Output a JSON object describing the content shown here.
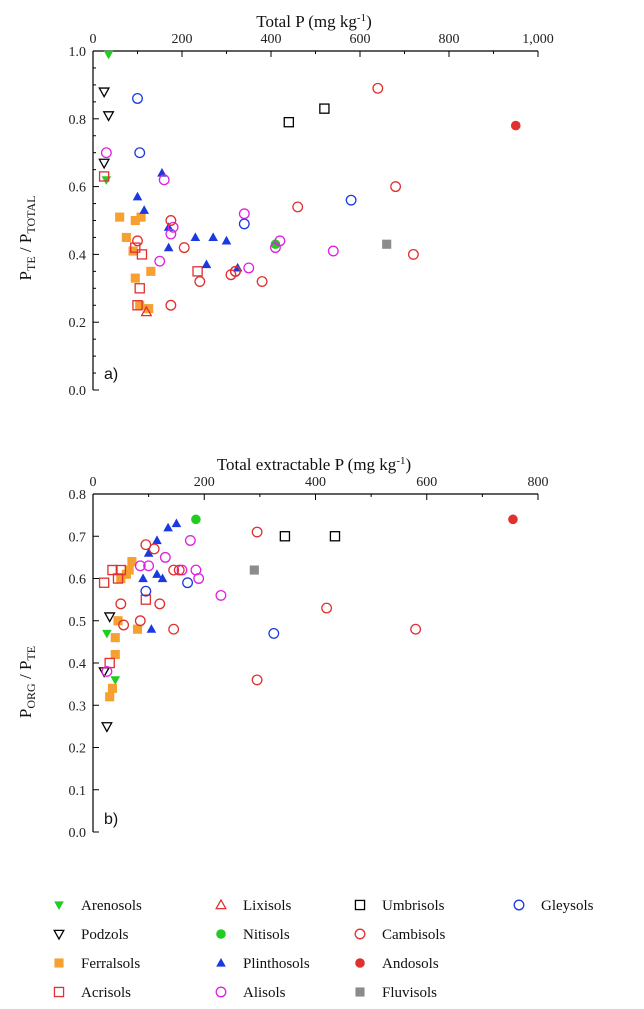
{
  "figure": {
    "legend": [
      {
        "name": "Arenosols",
        "color": "#22cc22",
        "marker": "triangle-down-filled"
      },
      {
        "name": "Podzols",
        "color": "#000000",
        "marker": "triangle-down-open"
      },
      {
        "name": "Ferralsols",
        "color": "#f5a030",
        "marker": "square-filled"
      },
      {
        "name": "Acrisols",
        "color": "#e03030",
        "marker": "square-open"
      },
      {
        "name": "Lixisols",
        "color": "#e03030",
        "marker": "triangle-up-open"
      },
      {
        "name": "Nitisols",
        "color": "#22cc22",
        "marker": "circle-filled"
      },
      {
        "name": "Plinthosols",
        "color": "#1a3ae0",
        "marker": "triangle-up-filled"
      },
      {
        "name": "Alisols",
        "color": "#e020e0",
        "marker": "circle-open"
      },
      {
        "name": "Umbrisols",
        "color": "#000000",
        "marker": "square-open"
      },
      {
        "name": "Cambisols",
        "color": "#e03030",
        "marker": "circle-open"
      },
      {
        "name": "Andosols",
        "color": "#e03030",
        "marker": "circle-filled"
      },
      {
        "name": "Fluvisols",
        "color": "#8c8c8c",
        "marker": "square-filled"
      },
      {
        "name": "Gleysols",
        "color": "#1a3ae0",
        "marker": "circle-open"
      }
    ]
  },
  "chart_data": [
    {
      "panel": "a)",
      "type": "scatter",
      "xlabel": {
        "main": "Total P (mg kg",
        "sup": "-1",
        "tail": ")"
      },
      "ylabel": {
        "p1": "P",
        "sub1": "TE",
        "mid": " / P",
        "sub2": "TOTAL"
      },
      "x_ticks": [
        "0",
        "200",
        "400",
        "600",
        "800",
        "1,000"
      ],
      "y_ticks": [
        "0.0",
        "0.2",
        "0.4",
        "0.6",
        "0.8",
        "1.0"
      ],
      "xlim": [
        0,
        1000
      ],
      "ylim": [
        0,
        1.0
      ],
      "x_axis_position": "top",
      "grid": false,
      "series": [
        {
          "name": "Arenosols",
          "points": [
            [
              35,
              0.99
            ],
            [
              30,
              0.62
            ]
          ]
        },
        {
          "name": "Podzols",
          "points": [
            [
              25,
              0.88
            ],
            [
              35,
              0.81
            ],
            [
              25,
              0.67
            ]
          ]
        },
        {
          "name": "Ferralsols",
          "points": [
            [
              60,
              0.51
            ],
            [
              75,
              0.45
            ],
            [
              90,
              0.41
            ],
            [
              95,
              0.5
            ],
            [
              95,
              0.33
            ],
            [
              108,
              0.51
            ],
            [
              105,
              0.25
            ],
            [
              130,
              0.35
            ],
            [
              125,
              0.24
            ]
          ]
        },
        {
          "name": "Acrisols",
          "points": [
            [
              25,
              0.63
            ],
            [
              95,
              0.42
            ],
            [
              105,
              0.3
            ],
            [
              110,
              0.4
            ],
            [
              100,
              0.25
            ],
            [
              235,
              0.35
            ]
          ]
        },
        {
          "name": "Lixisols",
          "points": [
            [
              120,
              0.23
            ]
          ]
        },
        {
          "name": "Nitisols",
          "points": [
            [
              410,
              0.43
            ]
          ]
        },
        {
          "name": "Plinthosols",
          "points": [
            [
              100,
              0.57
            ],
            [
              115,
              0.53
            ],
            [
              155,
              0.64
            ],
            [
              170,
              0.48
            ],
            [
              170,
              0.42
            ],
            [
              230,
              0.45
            ],
            [
              270,
              0.45
            ],
            [
              255,
              0.37
            ],
            [
              300,
              0.44
            ],
            [
              325,
              0.36
            ]
          ]
        },
        {
          "name": "Alisols",
          "points": [
            [
              30,
              0.7
            ],
            [
              150,
              0.38
            ],
            [
              160,
              0.62
            ],
            [
              175,
              0.46
            ],
            [
              180,
              0.48
            ],
            [
              340,
              0.52
            ],
            [
              410,
              0.42
            ],
            [
              420,
              0.44
            ],
            [
              350,
              0.36
            ],
            [
              540,
              0.41
            ]
          ]
        },
        {
          "name": "Umbrisols",
          "points": [
            [
              440,
              0.79
            ],
            [
              520,
              0.83
            ]
          ]
        },
        {
          "name": "Cambisols",
          "points": [
            [
              100,
              0.44
            ],
            [
              175,
              0.5
            ],
            [
              175,
              0.25
            ],
            [
              205,
              0.42
            ],
            [
              240,
              0.32
            ],
            [
              310,
              0.34
            ],
            [
              320,
              0.35
            ],
            [
              320,
              0.35
            ],
            [
              380,
              0.32
            ],
            [
              460,
              0.54
            ],
            [
              640,
              0.89
            ],
            [
              680,
              0.6
            ],
            [
              720,
              0.4
            ]
          ]
        },
        {
          "name": "Andosols",
          "points": [
            [
              950,
              0.78
            ]
          ]
        },
        {
          "name": "Fluvisols",
          "points": [
            [
              660,
              0.43
            ]
          ]
        },
        {
          "name": "Gleysols",
          "points": [
            [
              100,
              0.86
            ],
            [
              105,
              0.7
            ],
            [
              340,
              0.49
            ],
            [
              580,
              0.56
            ]
          ]
        }
      ]
    },
    {
      "panel": "b)",
      "type": "scatter",
      "xlabel": {
        "main": "Total extractable P (mg kg",
        "sup": "-1",
        "tail": ")"
      },
      "ylabel": {
        "p1": "P",
        "sub1": "ORG",
        "mid": " / P",
        "sub2": "TE"
      },
      "x_ticks": [
        "0",
        "200",
        "400",
        "600",
        "800"
      ],
      "y_ticks": [
        "0.0",
        "0.1",
        "0.2",
        "0.3",
        "0.4",
        "0.5",
        "0.6",
        "0.7",
        "0.8"
      ],
      "xlim": [
        0,
        800
      ],
      "ylim": [
        0,
        0.8
      ],
      "x_axis_position": "top",
      "grid": false,
      "series": [
        {
          "name": "Arenosols",
          "points": [
            [
              25,
              0.47
            ],
            [
              40,
              0.36
            ]
          ]
        },
        {
          "name": "Podzols",
          "points": [
            [
              20,
              0.38
            ],
            [
              30,
              0.51
            ],
            [
              25,
              0.25
            ]
          ]
        },
        {
          "name": "Ferralsols",
          "points": [
            [
              50,
              0.6
            ],
            [
              60,
              0.61
            ],
            [
              65,
              0.62
            ],
            [
              70,
              0.64
            ],
            [
              45,
              0.5
            ],
            [
              40,
              0.46
            ],
            [
              40,
              0.42
            ],
            [
              35,
              0.34
            ],
            [
              30,
              0.32
            ],
            [
              80,
              0.48
            ]
          ]
        },
        {
          "name": "Acrisols",
          "points": [
            [
              20,
              0.59
            ],
            [
              35,
              0.62
            ],
            [
              45,
              0.6
            ],
            [
              50,
              0.62
            ],
            [
              95,
              0.55
            ],
            [
              30,
              0.4
            ]
          ]
        },
        {
          "name": "Lixisols",
          "points": []
        },
        {
          "name": "Nitisols",
          "points": [
            [
              185,
              0.74
            ]
          ]
        },
        {
          "name": "Plinthosols",
          "points": [
            [
              90,
              0.6
            ],
            [
              100,
              0.66
            ],
            [
              115,
              0.61
            ],
            [
              115,
              0.69
            ],
            [
              125,
              0.6
            ],
            [
              135,
              0.72
            ],
            [
              150,
              0.73
            ],
            [
              105,
              0.48
            ]
          ]
        },
        {
          "name": "Alisols",
          "points": [
            [
              25,
              0.38
            ],
            [
              85,
              0.63
            ],
            [
              100,
              0.63
            ],
            [
              130,
              0.65
            ],
            [
              160,
              0.62
            ],
            [
              175,
              0.69
            ],
            [
              185,
              0.62
            ],
            [
              190,
              0.6
            ],
            [
              230,
              0.56
            ]
          ]
        },
        {
          "name": "Umbrisols",
          "points": [
            [
              345,
              0.7
            ],
            [
              435,
              0.7
            ]
          ]
        },
        {
          "name": "Cambisols",
          "points": [
            [
              50,
              0.54
            ],
            [
              55,
              0.49
            ],
            [
              85,
              0.5
            ],
            [
              95,
              0.68
            ],
            [
              110,
              0.67
            ],
            [
              120,
              0.54
            ],
            [
              145,
              0.48
            ],
            [
              145,
              0.62
            ],
            [
              155,
              0.62
            ],
            [
              295,
              0.71
            ],
            [
              295,
              0.36
            ],
            [
              420,
              0.53
            ],
            [
              580,
              0.48
            ]
          ]
        },
        {
          "name": "Andosols",
          "points": [
            [
              755,
              0.74
            ]
          ]
        },
        {
          "name": "Fluvisols",
          "points": [
            [
              290,
              0.62
            ]
          ]
        },
        {
          "name": "Gleysols",
          "points": [
            [
              95,
              0.57
            ],
            [
              170,
              0.59
            ],
            [
              325,
              0.47
            ]
          ]
        }
      ]
    }
  ]
}
